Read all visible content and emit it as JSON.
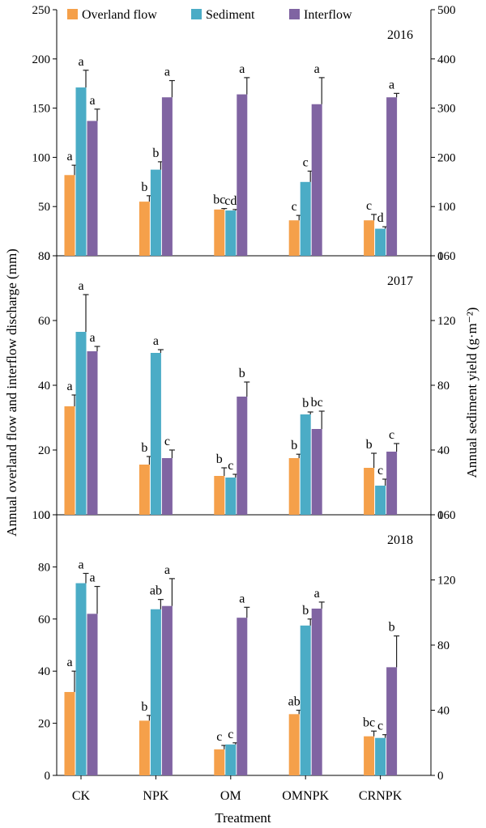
{
  "legend": [
    {
      "name": "Overland flow",
      "color": "#f5a04a"
    },
    {
      "name": "Sediment",
      "color": "#4bacc6"
    },
    {
      "name": "Interflow",
      "color": "#8064a2"
    }
  ],
  "left_axis_label": "Annual overland flow and interflow discharge (mm)",
  "right_axis_label": "Annual sediment yield (g·m⁻²)",
  "xlabel": "Treatment",
  "chart_data": [
    {
      "type": "bar",
      "panel_label": "2016",
      "categories": [
        "CK",
        "NPK",
        "OM",
        "OMNPK",
        "CRNPK"
      ],
      "ylim_left": [
        0,
        250
      ],
      "yticks_left": [
        0,
        50,
        100,
        150,
        200,
        250
      ],
      "ylim_right": [
        0,
        500
      ],
      "yticks_right": [
        0,
        100,
        200,
        300,
        400,
        500
      ],
      "grid": false,
      "legend_position": "top",
      "series": [
        {
          "name": "Overland flow",
          "axis": "left",
          "color": "#f5a04a",
          "values": [
            82,
            55,
            47,
            36,
            36
          ],
          "errors": [
            10,
            6,
            1,
            5,
            6
          ],
          "labels": [
            "a",
            "b",
            "bc",
            "c",
            "c"
          ]
        },
        {
          "name": "Sediment",
          "axis": "right",
          "color": "#4bacc6",
          "values": [
            342,
            175,
            92,
            150,
            55
          ],
          "errors": [
            35,
            16,
            2,
            22,
            4
          ],
          "labels": [
            "a",
            "b",
            "cd",
            "c",
            "d"
          ]
        },
        {
          "name": "Interflow",
          "axis": "left",
          "color": "#8064a2",
          "values": [
            137,
            161,
            164,
            154,
            161
          ],
          "errors": [
            12,
            17,
            17,
            27,
            4
          ],
          "labels": [
            "a",
            "a",
            "a",
            "a",
            "a"
          ]
        }
      ]
    },
    {
      "type": "bar",
      "panel_label": "2017",
      "categories": [
        "CK",
        "NPK",
        "OM",
        "OMNPK",
        "CRNPK"
      ],
      "ylim_left": [
        0,
        80
      ],
      "yticks_left": [
        0,
        20,
        40,
        60,
        80
      ],
      "ylim_right": [
        0,
        160
      ],
      "yticks_right": [
        0,
        40,
        80,
        120,
        160
      ],
      "grid": false,
      "series": [
        {
          "name": "Overland flow",
          "axis": "left",
          "color": "#f5a04a",
          "values": [
            33.5,
            15.5,
            12,
            17.5,
            14.5
          ],
          "errors": [
            3.5,
            2.5,
            2.5,
            1.2,
            4.5
          ],
          "labels": [
            "a",
            "b",
            "b",
            "b",
            "b"
          ]
        },
        {
          "name": "Sediment",
          "axis": "right",
          "color": "#4bacc6",
          "values": [
            113,
            100,
            23,
            62,
            18
          ],
          "errors": [
            23,
            2,
            2,
            1.5,
            4
          ],
          "labels": [
            "a",
            "a",
            "c",
            "b",
            "c"
          ]
        },
        {
          "name": "Interflow",
          "axis": "left",
          "color": "#8064a2",
          "values": [
            50.5,
            17.5,
            36.5,
            26.5,
            19.5
          ],
          "errors": [
            1.5,
            2.5,
            4.5,
            5.5,
            2.5
          ],
          "labels": [
            "a",
            "c",
            "b",
            "bc",
            "c"
          ]
        }
      ]
    },
    {
      "type": "bar",
      "panel_label": "2018",
      "categories": [
        "CK",
        "NPK",
        "OM",
        "OMNPK",
        "CRNPK"
      ],
      "ylim_left": [
        0,
        100
      ],
      "yticks_left": [
        0,
        20,
        40,
        60,
        80,
        100
      ],
      "ylim_right": [
        0,
        160
      ],
      "yticks_right": [
        0,
        40,
        80,
        120,
        160
      ],
      "grid": false,
      "series": [
        {
          "name": "Overland flow",
          "axis": "left",
          "color": "#f5a04a",
          "values": [
            32,
            21,
            10,
            23.5,
            15
          ],
          "errors": [
            8,
            2,
            1.5,
            1.5,
            2
          ],
          "labels": [
            "a",
            "b",
            "c",
            "ab",
            "bc"
          ]
        },
        {
          "name": "Sediment",
          "axis": "right",
          "color": "#4bacc6",
          "values": [
            118,
            102,
            19,
            92,
            23
          ],
          "errors": [
            6,
            6,
            1,
            4,
            2
          ],
          "labels": [
            "a",
            "ab",
            "c",
            "b",
            "c"
          ]
        },
        {
          "name": "Interflow",
          "axis": "left",
          "color": "#8064a2",
          "values": [
            62,
            65,
            60.5,
            64,
            41.5
          ],
          "errors": [
            10.5,
            10.5,
            4,
            2.5,
            12
          ],
          "labels": [
            "a",
            "a",
            "a",
            "a",
            "b"
          ]
        }
      ]
    }
  ]
}
